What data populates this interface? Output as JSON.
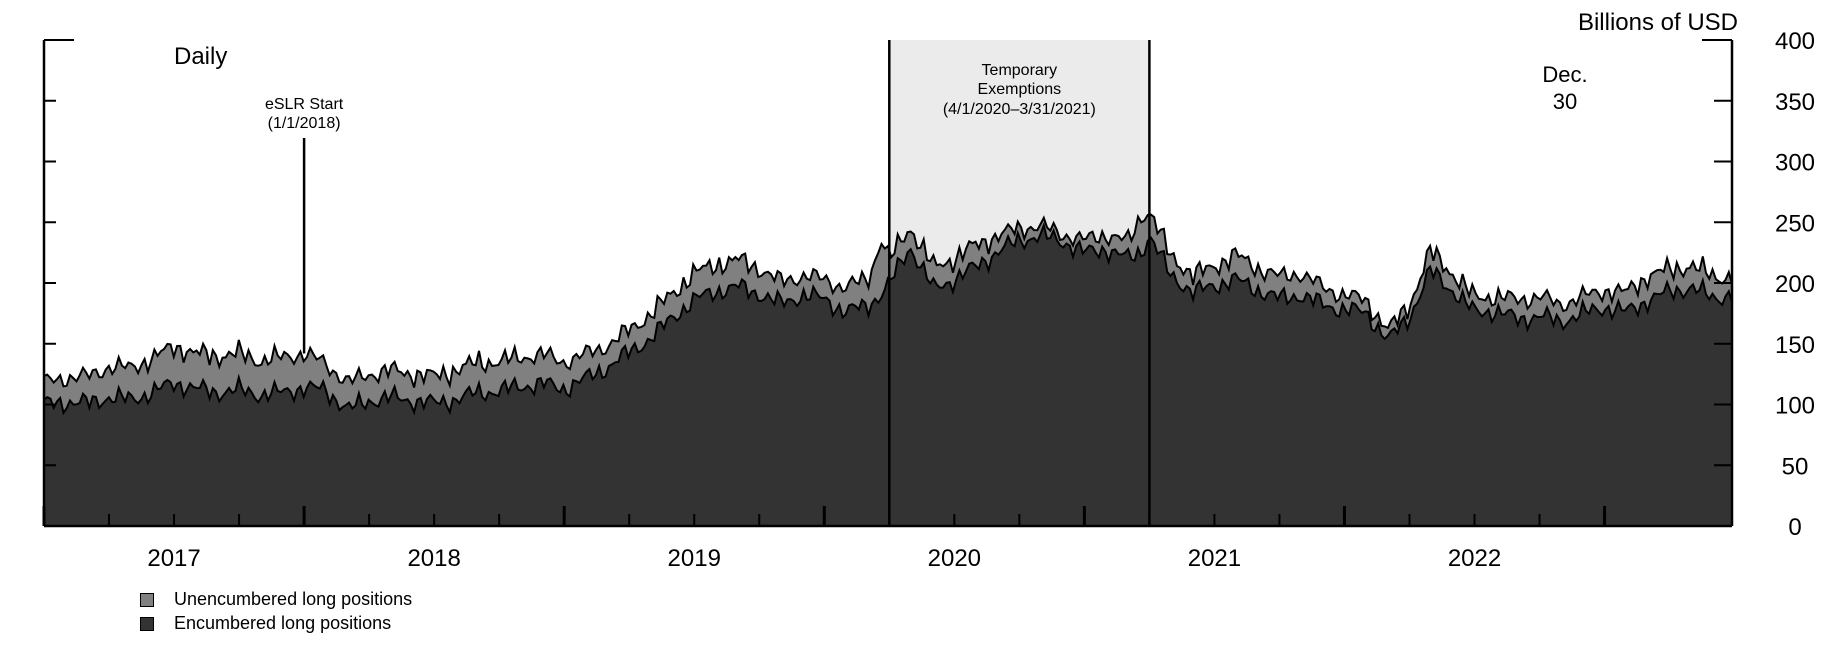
{
  "chart_data": {
    "type": "area",
    "frequency_label": "Daily",
    "unit_label": "Billions of USD",
    "ylim": [
      0,
      400
    ],
    "yticks": [
      "0",
      "50",
      "100",
      "150",
      "200",
      "250",
      "300",
      "350",
      "400"
    ],
    "xlim": [
      2016.5,
      2022.99
    ],
    "xticks": [
      "2017",
      "2018",
      "2019",
      "2020",
      "2021",
      "2022"
    ],
    "grid": false,
    "legend_position": "bottom-left",
    "stacked": true,
    "x": [
      2016.5,
      2016.58,
      2016.67,
      2016.75,
      2016.83,
      2016.92,
      2017.0,
      2017.08,
      2017.17,
      2017.25,
      2017.33,
      2017.42,
      2017.5,
      2017.58,
      2017.67,
      2017.75,
      2017.83,
      2017.92,
      2018.0,
      2018.08,
      2018.17,
      2018.25,
      2018.33,
      2018.42,
      2018.5,
      2018.58,
      2018.67,
      2018.75,
      2018.83,
      2018.92,
      2019.0,
      2019.08,
      2019.17,
      2019.25,
      2019.33,
      2019.42,
      2019.5,
      2019.58,
      2019.67,
      2019.72,
      2019.75,
      2019.83,
      2019.92,
      2020.0,
      2020.08,
      2020.17,
      2020.25,
      2020.33,
      2020.42,
      2020.5,
      2020.58,
      2020.67,
      2020.72,
      2020.75,
      2020.83,
      2020.92,
      2021.0,
      2021.08,
      2021.17,
      2021.25,
      2021.33,
      2021.42,
      2021.5,
      2021.58,
      2021.67,
      2021.75,
      2021.83,
      2021.92,
      2022.0,
      2022.08,
      2022.17,
      2022.25,
      2022.33,
      2022.42,
      2022.5,
      2022.58,
      2022.67,
      2022.75,
      2022.83,
      2022.92,
      2022.99
    ],
    "series": [
      {
        "name": "Encumbered long positions",
        "color": "#333333",
        "values": [
          100,
          102,
          101,
          106,
          104,
          110,
          118,
          113,
          110,
          112,
          108,
          110,
          114,
          112,
          96,
          103,
          106,
          103,
          101,
          104,
          110,
          111,
          115,
          117,
          113,
          121,
          131,
          143,
          154,
          172,
          186,
          193,
          197,
          191,
          183,
          190,
          187,
          176,
          182,
          191,
          199,
          230,
          195,
          203,
          213,
          226,
          235,
          239,
          234,
          225,
          228,
          220,
          226,
          239,
          207,
          192,
          198,
          203,
          194,
          187,
          190,
          182,
          178,
          176,
          153,
          172,
          210,
          193,
          176,
          177,
          170,
          173,
          168,
          175,
          180,
          176,
          186,
          193,
          196,
          188,
          190
        ]
      },
      {
        "name": "Unencumbered long positions",
        "color": "#808080",
        "values": [
          18,
          20,
          22,
          25,
          26,
          28,
          30,
          29,
          30,
          30,
          28,
          29,
          28,
          22,
          22,
          22,
          22,
          22,
          22,
          24,
          25,
          24,
          24,
          24,
          22,
          20,
          18,
          18,
          20,
          20,
          22,
          22,
          22,
          21,
          18,
          16,
          16,
          20,
          22,
          45,
          20,
          16,
          18,
          17,
          18,
          13,
          10,
          8,
          6,
          10,
          12,
          14,
          30,
          20,
          16,
          14,
          16,
          20,
          18,
          18,
          18,
          14,
          12,
          10,
          8,
          10,
          16,
          14,
          12,
          12,
          16,
          16,
          14,
          14,
          14,
          16,
          20,
          18,
          18,
          18,
          14
        ]
      }
    ],
    "annotations": {
      "eslr_title": "eSLR Start",
      "eslr_date": "(1/1/2018)",
      "eslr_x": 2017.5,
      "shade_line1": "Temporary",
      "shade_line2": "Exemptions",
      "shade_line3": "(4/1/2020–3/31/2021)",
      "shade_start": 2019.75,
      "shade_end": 2020.75,
      "shade_color": "#ebebeb",
      "end_label_1": "Dec.",
      "end_label_2": "30"
    }
  }
}
